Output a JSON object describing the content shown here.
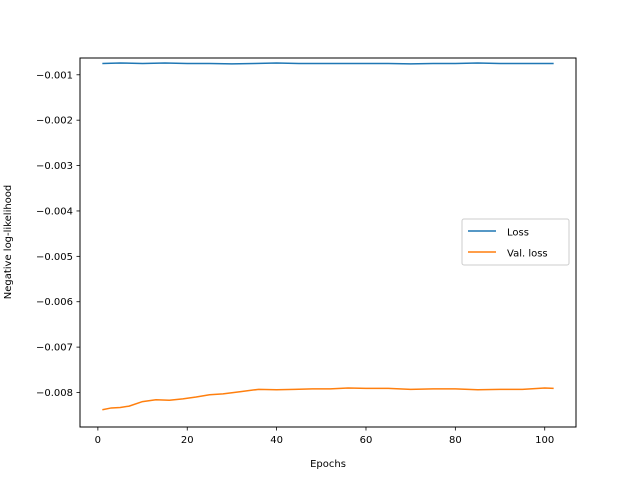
{
  "chart_data": {
    "type": "line",
    "title": "",
    "xlabel": "Epochs",
    "ylabel": "Negative log-likelihood",
    "xlim": [
      -4,
      107
    ],
    "ylim": [
      -0.00876,
      -0.00063
    ],
    "xticks": [
      0,
      20,
      40,
      60,
      80,
      100
    ],
    "xtick_labels": [
      "0",
      "20",
      "40",
      "60",
      "80",
      "100"
    ],
    "yticks": [
      -0.001,
      -0.002,
      -0.003,
      -0.004,
      -0.005,
      -0.006,
      -0.007,
      -0.008
    ],
    "ytick_labels": [
      "−0.001",
      "−0.002",
      "−0.003",
      "−0.004",
      "−0.005",
      "−0.006",
      "−0.007",
      "−0.008"
    ],
    "grid": false,
    "legend_position": "center-right",
    "series": [
      {
        "name": "Loss",
        "color": "#1f77b4",
        "x": [
          1,
          5,
          10,
          15,
          20,
          25,
          30,
          35,
          40,
          45,
          50,
          55,
          60,
          65,
          70,
          75,
          80,
          85,
          90,
          95,
          100,
          102
        ],
        "y": [
          -0.00075,
          -0.00074,
          -0.00075,
          -0.00074,
          -0.00075,
          -0.00075,
          -0.00076,
          -0.00075,
          -0.00074,
          -0.00075,
          -0.00075,
          -0.00075,
          -0.00075,
          -0.00075,
          -0.00076,
          -0.00075,
          -0.00075,
          -0.00074,
          -0.00075,
          -0.00075,
          -0.00075,
          -0.00075
        ]
      },
      {
        "name": "Val. loss",
        "color": "#ff7f0e",
        "x": [
          1,
          3,
          5,
          7,
          10,
          13,
          16,
          19,
          22,
          25,
          28,
          32,
          36,
          40,
          44,
          48,
          52,
          56,
          60,
          65,
          70,
          75,
          80,
          85,
          90,
          95,
          100,
          102
        ],
        "y": [
          -0.00838,
          -0.00834,
          -0.00833,
          -0.0083,
          -0.0082,
          -0.00816,
          -0.00817,
          -0.00814,
          -0.0081,
          -0.00805,
          -0.00803,
          -0.00798,
          -0.00793,
          -0.00794,
          -0.00793,
          -0.00792,
          -0.00792,
          -0.0079,
          -0.00791,
          -0.00791,
          -0.00793,
          -0.00792,
          -0.00792,
          -0.00794,
          -0.00793,
          -0.00793,
          -0.0079,
          -0.00791
        ]
      }
    ]
  }
}
